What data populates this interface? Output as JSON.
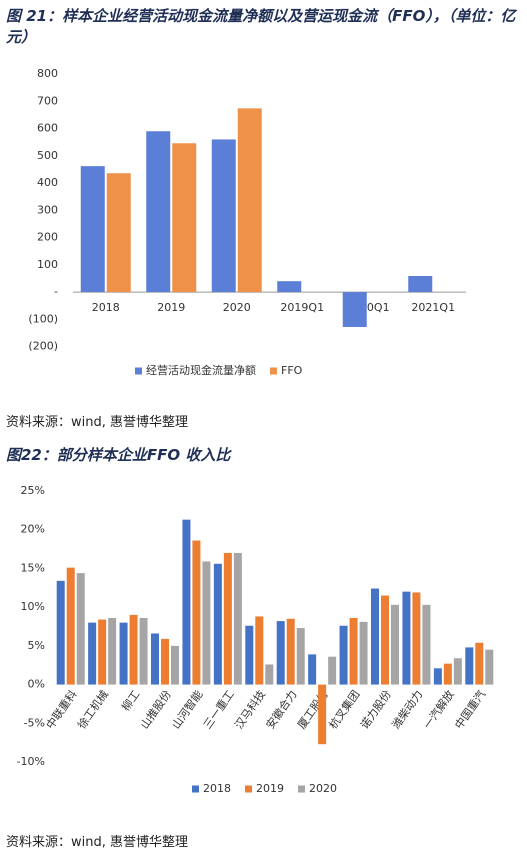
{
  "chart_data": [
    {
      "type": "bar",
      "title": "图 21：样本企业经营活动现金流量净额以及营运现金流（FFO），（单位：亿元）",
      "source": "资料来源：wind, 惠誉博华整理",
      "categories": [
        "2018",
        "2019",
        "2020",
        "2019Q1",
        "2020Q1",
        "2021Q1"
      ],
      "series": [
        {
          "name": "经营活动现金流量净额",
          "color": "#5b7fd6",
          "values": [
            462,
            590,
            560,
            40,
            -128,
            59
          ]
        },
        {
          "name": "FFO",
          "color": "#f0914a",
          "values": [
            436,
            546,
            674,
            null,
            null,
            null
          ]
        }
      ],
      "ylim": [
        -200,
        800
      ],
      "yticks": [
        {
          "value": -200,
          "label": "(200)"
        },
        {
          "value": -100,
          "label": "(100)"
        },
        {
          "value": 0,
          "label": "-"
        },
        100,
        200,
        300,
        400,
        500,
        600,
        700,
        800
      ],
      "legend": "bottom"
    },
    {
      "type": "bar",
      "title": "图22：部分样本企业FFO 收入比",
      "source": "资料来源：wind, 惠誉博华整理",
      "categories": [
        "中联重科",
        "徐工机械",
        "柳工",
        "山推股份",
        "山河智能",
        "三一重工",
        "汉马科技",
        "安徽合力",
        "厦工股份",
        "杭叉集团",
        "诺力股份",
        "潍柴动力",
        "一汽解放",
        "中国重汽"
      ],
      "series": [
        {
          "name": "2018",
          "color": "#4472c4",
          "values": [
            13.4,
            8.0,
            8.0,
            6.6,
            21.3,
            15.6,
            7.6,
            8.2,
            3.9,
            7.6,
            12.4,
            12.0,
            2.1,
            4.8
          ]
        },
        {
          "name": "2019",
          "color": "#ed7d31",
          "values": [
            15.1,
            8.4,
            9.0,
            5.9,
            18.6,
            17.0,
            8.8,
            8.5,
            -7.7,
            8.6,
            11.5,
            11.9,
            2.7,
            5.4
          ]
        },
        {
          "name": "2020",
          "color": "#a5a5a5",
          "values": [
            14.4,
            8.6,
            8.6,
            5.0,
            15.9,
            17.0,
            2.6,
            7.3,
            3.6,
            8.1,
            10.3,
            10.3,
            3.4,
            4.5
          ]
        }
      ],
      "ylim": [
        -10,
        25
      ],
      "yticks": [
        {
          "value": -10,
          "label": "-10%"
        },
        {
          "value": -5,
          "label": "-5%"
        },
        {
          "value": 0,
          "label": "0%"
        },
        {
          "value": 5,
          "label": "5%"
        },
        {
          "value": 10,
          "label": "10%"
        },
        {
          "value": 15,
          "label": "15%"
        },
        {
          "value": 20,
          "label": "20%"
        },
        {
          "value": 25,
          "label": "25%"
        }
      ],
      "legend": "bottom"
    }
  ]
}
